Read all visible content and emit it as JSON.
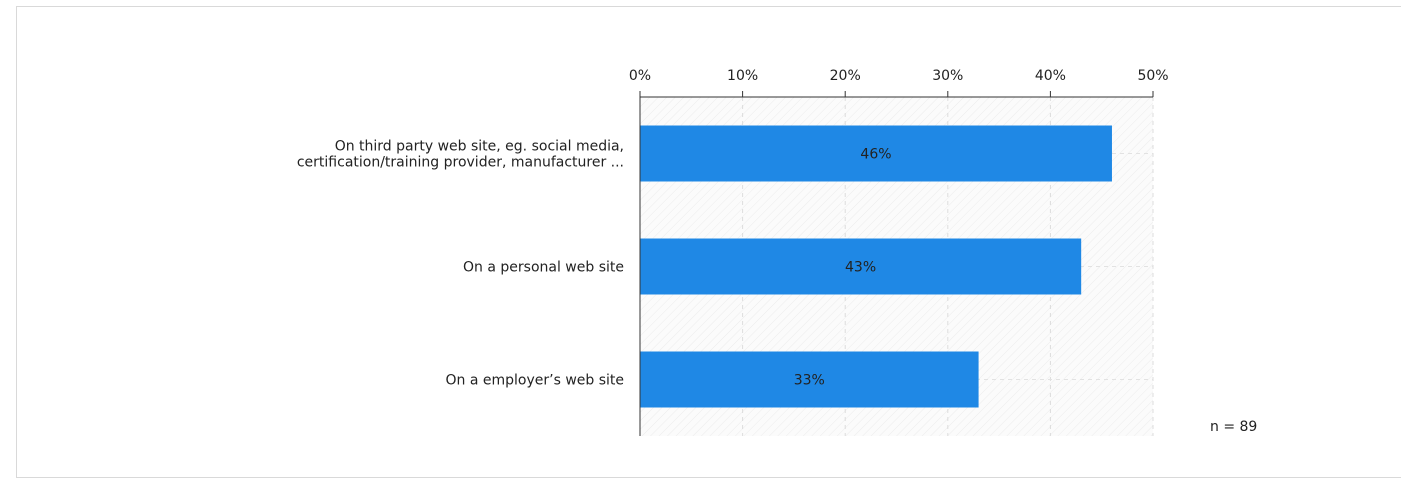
{
  "chart_data": {
    "type": "bar",
    "orientation": "horizontal",
    "categories": [
      [
        "On third party web site, eg. social media,",
        "certification/training provider, manufacturer ..."
      ],
      [
        "On a personal web site"
      ],
      [
        "On a employer’s web site"
      ]
    ],
    "values": [
      46,
      43,
      33
    ],
    "value_labels": [
      "46%",
      "43%",
      "33%"
    ],
    "xlim": [
      0,
      50
    ],
    "xticks": [
      0,
      10,
      20,
      30,
      40,
      50
    ],
    "xtick_labels": [
      "0%",
      "10%",
      "20%",
      "30%",
      "40%",
      "50%"
    ],
    "xaxis_position": "top",
    "grid": true,
    "bar_color": "#1f88e5",
    "note": "n = 89"
  }
}
